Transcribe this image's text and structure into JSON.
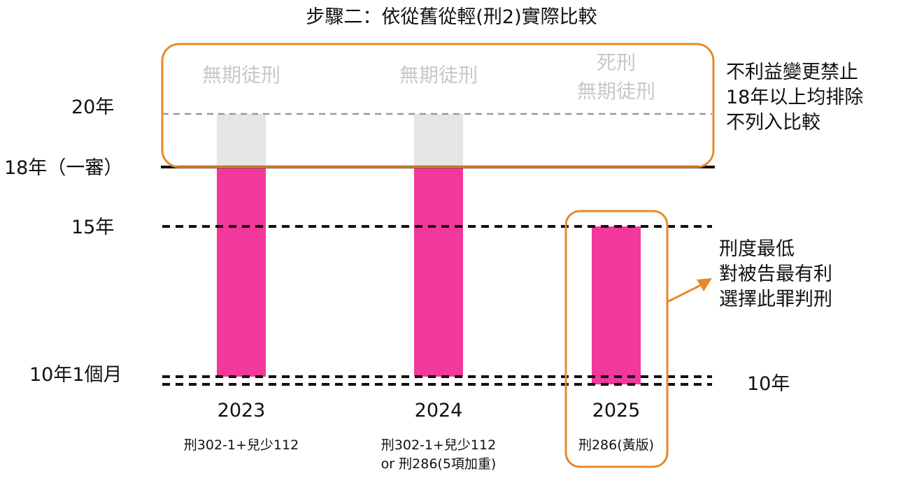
{
  "title": "步驟二：依從舊從輕(刑2)實際比較",
  "colors": {
    "bar": "#f2399b",
    "bar_upper": "#e6e6e6",
    "frame": "#e8892b",
    "ghost_text": "#c8c8c8",
    "dashed_grey": "#9a9a9a"
  },
  "chart_data": {
    "type": "bar",
    "title": "步驟二：依從舊從輕(刑2)實際比較",
    "categories": [
      "2023",
      "2024",
      "2025"
    ],
    "law_labels": [
      [
        "刑302-1+兒少112"
      ],
      [
        "刑302-1+兒少112",
        "or 刑286(5項加重)"
      ],
      [
        "刑286(黃版)"
      ]
    ],
    "series": [
      {
        "values_low": [
          10.083,
          10.083,
          10
        ],
        "values_high": [
          18,
          18,
          15
        ]
      }
    ],
    "excluded_segments": [
      {
        "category": "2023",
        "from": 18,
        "to": 20
      },
      {
        "category": "2024",
        "from": 18,
        "to": 20
      }
    ],
    "upper_labels": [
      [
        "無期徒刑"
      ],
      [
        "無期徒刑"
      ],
      [
        "死刑",
        "無期徒刑"
      ]
    ],
    "y_tick_labels": {
      "y20": "20年",
      "y18": "18年（一審）",
      "y15": "15年",
      "y10_1": "10年1個月",
      "y10_right": "10年"
    },
    "y_ticks": [
      20,
      18,
      15,
      10.083,
      10
    ],
    "ylim": [
      10,
      20
    ],
    "annotations": {
      "exclusion": [
        "不利益變更禁止",
        "18年以上均排除",
        "不列入比較"
      ],
      "best": [
        "刑度最低",
        "對被告最有利",
        "選擇此罪判刑"
      ]
    }
  }
}
